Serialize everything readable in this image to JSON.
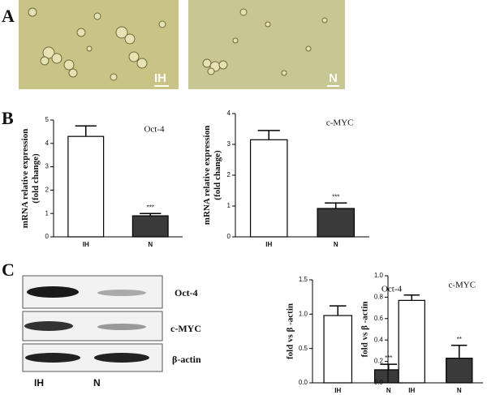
{
  "panel_labels": [
    "A",
    "B",
    "C"
  ],
  "micrographs": [
    {
      "label": "IH"
    },
    {
      "label": "N"
    }
  ],
  "blot": {
    "bands": [
      "Oct-4",
      "c-MYC",
      "β-actin"
    ],
    "lanes": [
      "IH",
      "N"
    ]
  },
  "chart_data": [
    {
      "type": "bar",
      "title": "Oct-4",
      "ylabel": [
        "mRNA relative expression",
        "(fold change)"
      ],
      "categories": [
        "IH",
        "N"
      ],
      "values": [
        4.3,
        0.9
      ],
      "errors": [
        0.45,
        0.1
      ],
      "colors": [
        "#ffffff",
        "#3a3a3a"
      ],
      "annotation": "***",
      "ylim": [
        0,
        5
      ],
      "yticks": [
        0,
        1,
        2,
        3,
        4,
        5
      ]
    },
    {
      "type": "bar",
      "title": "c-MYC",
      "ylabel": [
        "mRNA relative expression",
        "(fold change)"
      ],
      "categories": [
        "IH",
        "N"
      ],
      "values": [
        3.15,
        0.92
      ],
      "errors": [
        0.3,
        0.18
      ],
      "colors": [
        "#ffffff",
        "#3a3a3a"
      ],
      "annotation": "***",
      "ylim": [
        0,
        4
      ],
      "yticks": [
        0,
        1,
        2,
        3,
        4
      ]
    },
    {
      "type": "bar",
      "title": "Oct-4",
      "ylabel": [
        "fold vs β -actin"
      ],
      "categories": [
        "IH",
        "N"
      ],
      "values": [
        0.98,
        0.19
      ],
      "errors": [
        0.14,
        0.08
      ],
      "colors": [
        "#ffffff",
        "#3a3a3a"
      ],
      "annotation": "***",
      "ylim": [
        0,
        1.5
      ],
      "yticks": [
        {
          "value": 0,
          "label": "0.0"
        },
        {
          "value": 0.5,
          "label": "0.5"
        },
        {
          "value": 1,
          "label": "1.0"
        },
        1.5
      ]
    },
    {
      "type": "bar",
      "title": "c-MYC",
      "ylabel": [
        "fold vs β -actin"
      ],
      "categories": [
        "IH",
        "N"
      ],
      "values": [
        0.77,
        0.23
      ],
      "errors": [
        0.05,
        0.12
      ],
      "colors": [
        "#ffffff",
        "#3a3a3a"
      ],
      "annotation": "**",
      "ylim": [
        0,
        1.0
      ],
      "yticks": [
        {
          "value": 0,
          "label": "0.0"
        },
        0.2,
        0.4,
        0.6,
        0.8,
        {
          "value": 1,
          "label": "1.0"
        }
      ]
    }
  ]
}
